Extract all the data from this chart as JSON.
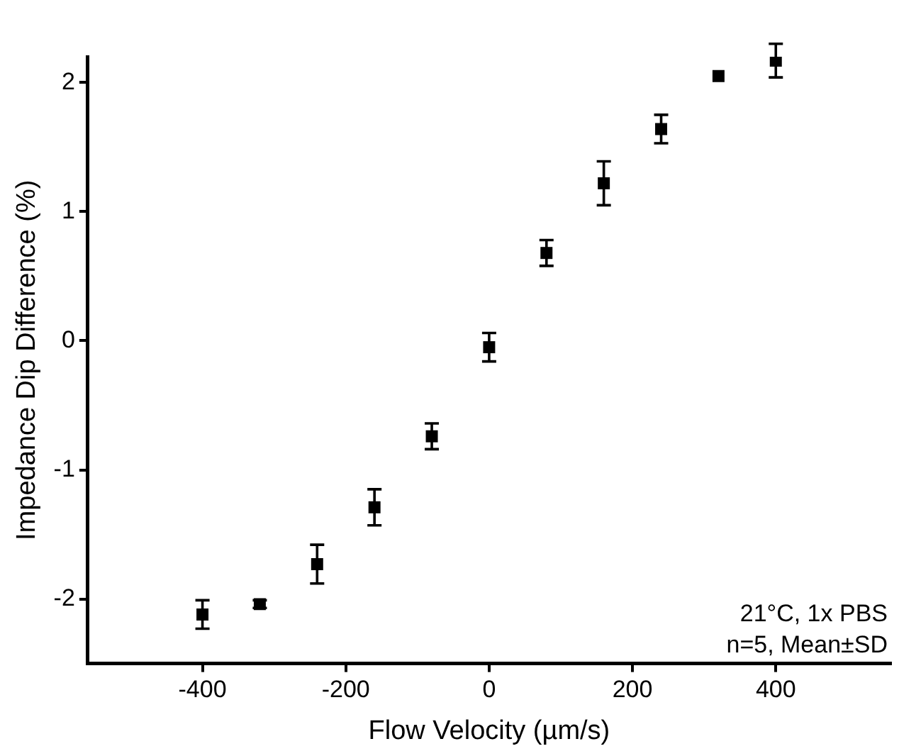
{
  "chart_data": {
    "type": "scatter",
    "xlabel": "Flow Velocity (µm/s)",
    "ylabel": "Impedance Dip Difference (%)",
    "x": [
      -400,
      -320,
      -240,
      -160,
      -80,
      0,
      80,
      160,
      240,
      320,
      400
    ],
    "series": [
      {
        "color": "#000000",
        "values": [
          -2.12,
          -2.04,
          -1.73,
          -1.29,
          -0.74,
          -0.05,
          0.68,
          1.22,
          1.64,
          2.05,
          2.17
        ],
        "errors": [
          0.11,
          0.03,
          0.15,
          0.14,
          0.1,
          0.11,
          0.1,
          0.17,
          0.11,
          null,
          0.13
        ]
      }
    ],
    "xlim": [
      -560,
      560
    ],
    "xticks": [
      -400,
      -200,
      0,
      200,
      400
    ],
    "ylim": [
      -2.5,
      2.2
    ],
    "yticks": [
      -2,
      -1,
      0,
      1,
      2
    ],
    "marker": "square",
    "grid": false,
    "legend": false,
    "annotations": [
      "21°C, 1x PBS",
      "n=5, Mean±SD"
    ]
  }
}
